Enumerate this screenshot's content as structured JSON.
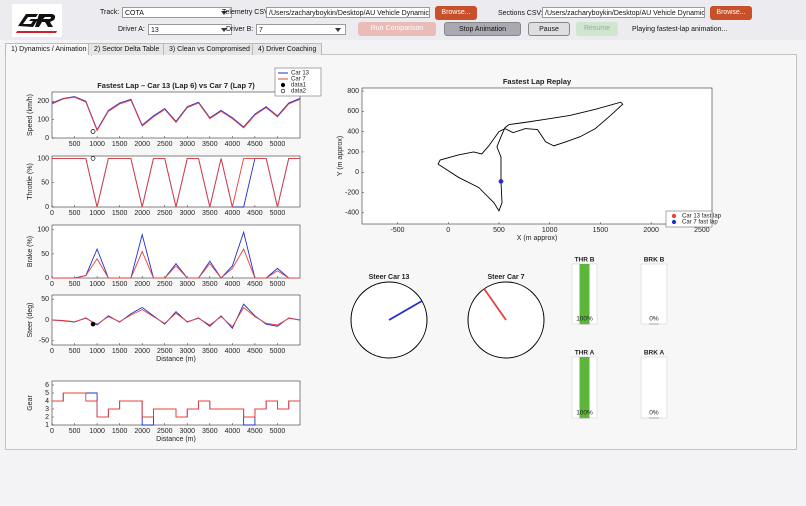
{
  "toolbar": {
    "track_label": "Track:",
    "track": "COTA",
    "telemetry_label": "Telemetry CSV:",
    "telemetry_path": "/Users/zacharyboykin/Desktop/AU Vehicle Dynamics &",
    "browse1": "Browse...",
    "sections_label": "Sections CSV:",
    "sections_path": "/Users/zacharyboykin/Desktop/AU Vehicle Dynamics &",
    "browse2": "Browse...",
    "driver_a_label": "Driver A:",
    "driver_a": "13",
    "driver_b_label": "Driver B:",
    "driver_b": "7",
    "run": "Run Comparison",
    "stop": "Stop Animation",
    "pause": "Pause",
    "resume": "Resume",
    "status": "Playing fastest-lap animation..."
  },
  "tabs": [
    "1) Dynamics / Animation",
    "2) Sector Delta Table",
    "3) Clean vs Compromised",
    "4) Driver Coaching"
  ],
  "chart_data": [
    {
      "type": "line",
      "title": "Fastest Lap – Car 13 (Lap 6) vs Car 7 (Lap 7)",
      "ylabel": "Speed (km/h)",
      "x": [
        0,
        250,
        500,
        750,
        1000,
        1250,
        1500,
        1750,
        2000,
        2250,
        2500,
        2750,
        3000,
        3250,
        3500,
        3750,
        4000,
        4250,
        4500,
        4750,
        5000,
        5250,
        5500
      ],
      "series": [
        {
          "name": "Car 13",
          "color": "#1f2fd0",
          "values": [
            190,
            215,
            225,
            200,
            45,
            150,
            190,
            210,
            70,
            120,
            160,
            90,
            170,
            195,
            110,
            150,
            110,
            60,
            130,
            170,
            120,
            190,
            215
          ]
        },
        {
          "name": "Car 7",
          "color": "#e8403a",
          "values": [
            185,
            212,
            222,
            195,
            40,
            145,
            185,
            205,
            65,
            115,
            155,
            85,
            165,
            190,
            105,
            145,
            105,
            55,
            125,
            165,
            115,
            185,
            210
          ]
        }
      ],
      "points": [
        {
          "name": "data1",
          "color": "#000000",
          "marker": "filled",
          "x": 910,
          "y": 35
        },
        {
          "name": "data2",
          "color": "#000000",
          "marker": "open",
          "x": 910,
          "y": 35
        }
      ],
      "legend": "northeast",
      "xlim": [
        0,
        5500
      ],
      "xticks": [
        500,
        1000,
        1500,
        2000,
        2500,
        3000,
        3500,
        4000,
        4500,
        5000
      ],
      "ylim": [
        0,
        250
      ],
      "yticks": [
        0,
        100,
        200
      ]
    },
    {
      "type": "line",
      "ylabel": "Throttle (%)",
      "x": [
        0,
        250,
        500,
        750,
        1000,
        1250,
        1500,
        1750,
        2000,
        2250,
        2500,
        2750,
        3000,
        3250,
        3500,
        3750,
        4000,
        4250,
        4500,
        4750,
        5000,
        5250,
        5500
      ],
      "series": [
        {
          "color": "#1f2fd0",
          "values": [
            100,
            100,
            100,
            100,
            0,
            100,
            100,
            100,
            0,
            100,
            100,
            0,
            100,
            100,
            0,
            100,
            0,
            0,
            100,
            100,
            0,
            100,
            100
          ]
        },
        {
          "color": "#e8403a",
          "values": [
            100,
            100,
            100,
            100,
            0,
            100,
            100,
            100,
            0,
            100,
            100,
            0,
            100,
            100,
            0,
            100,
            0,
            100,
            100,
            100,
            0,
            100,
            100
          ]
        }
      ],
      "points": [
        {
          "color": "#000000",
          "marker": "open",
          "x": 910,
          "y": 100
        }
      ],
      "xlim": [
        0,
        5500
      ],
      "xticks": [
        0,
        500,
        1000,
        1500,
        2000,
        2500,
        3000,
        3500,
        4000,
        4500,
        5000
      ],
      "ylim": [
        0,
        105
      ],
      "yticks": [
        0,
        50,
        100
      ]
    },
    {
      "type": "line",
      "ylabel": "Brake (%)",
      "x": [
        0,
        250,
        500,
        750,
        1000,
        1250,
        1500,
        1750,
        2000,
        2250,
        2500,
        2750,
        3000,
        3250,
        3500,
        3750,
        4000,
        4250,
        4500,
        4750,
        5000,
        5250,
        5500
      ],
      "series": [
        {
          "color": "#1f2fd0",
          "values": [
            0,
            0,
            0,
            5,
            60,
            0,
            0,
            0,
            90,
            0,
            0,
            30,
            0,
            0,
            35,
            0,
            25,
            95,
            0,
            0,
            20,
            0,
            0
          ]
        },
        {
          "color": "#e8403a",
          "values": [
            0,
            0,
            0,
            5,
            40,
            0,
            0,
            0,
            55,
            0,
            0,
            25,
            0,
            0,
            30,
            0,
            20,
            60,
            0,
            0,
            15,
            0,
            0
          ]
        }
      ],
      "xlim": [
        0,
        5500
      ],
      "xticks": [
        0,
        500,
        1000,
        1500,
        2000,
        2500,
        3000,
        3500,
        4000,
        4500,
        5000
      ],
      "ylim": [
        0,
        110
      ],
      "yticks": [
        0,
        50,
        100
      ]
    },
    {
      "type": "line",
      "ylabel": "Steer (deg)",
      "xlabel": "Distance (m)",
      "x": [
        0,
        250,
        500,
        750,
        1000,
        1250,
        1500,
        1750,
        2000,
        2250,
        2500,
        2750,
        3000,
        3250,
        3500,
        3750,
        4000,
        4250,
        4500,
        4750,
        5000,
        5250,
        5500
      ],
      "series": [
        {
          "color": "#1f2fd0",
          "values": [
            0,
            -2,
            -5,
            5,
            -12,
            10,
            -5,
            15,
            30,
            10,
            -10,
            20,
            -5,
            5,
            -15,
            10,
            -20,
            38,
            10,
            -10,
            -15,
            5,
            0
          ]
        },
        {
          "color": "#e8403a",
          "values": [
            0,
            -1,
            -4,
            4,
            -10,
            8,
            -4,
            12,
            25,
            8,
            -8,
            16,
            -4,
            4,
            -12,
            8,
            -16,
            30,
            8,
            -8,
            -12,
            4,
            0
          ]
        }
      ],
      "points": [
        {
          "color": "#000000",
          "marker": "filled",
          "x": 910,
          "y": -10
        }
      ],
      "xlim": [
        0,
        5500
      ],
      "xticks": [
        0,
        500,
        1000,
        1500,
        2000,
        2500,
        3000,
        3500,
        4000,
        4500,
        5000
      ],
      "ylim": [
        -60,
        60
      ],
      "yticks": [
        -50,
        0,
        50
      ]
    },
    {
      "type": "line",
      "step": true,
      "ylabel": "Gear",
      "xlabel": "Distance (m)",
      "x": [
        0,
        250,
        500,
        750,
        1000,
        1250,
        1500,
        1750,
        2000,
        2250,
        2500,
        2750,
        3000,
        3250,
        3500,
        3750,
        4000,
        4250,
        4500,
        4750,
        5000,
        5250,
        5500
      ],
      "series": [
        {
          "color": "#1f2fd0",
          "values": [
            4,
            5,
            5,
            5,
            2,
            3,
            4,
            4,
            1,
            3,
            3,
            2,
            3,
            4,
            3,
            3,
            3,
            1,
            3,
            4,
            3,
            4,
            4
          ]
        },
        {
          "color": "#e8403a",
          "values": [
            4,
            5,
            5,
            4,
            2,
            3,
            4,
            4,
            2,
            3,
            3,
            2,
            3,
            4,
            3,
            3,
            3,
            2,
            3,
            4,
            3,
            4,
            4
          ]
        }
      ],
      "xlim": [
        0,
        5500
      ],
      "xticks": [
        0,
        500,
        1000,
        1500,
        2000,
        2500,
        3000,
        3500,
        4000,
        4500,
        5000
      ],
      "ylim": [
        1,
        6.5
      ],
      "yticks": [
        1,
        2,
        3,
        4,
        5,
        6
      ]
    },
    {
      "type": "line",
      "title": "Fastest Lap Replay",
      "xlabel": "X (m approx)",
      "ylabel": "Y (m approx)",
      "series": [
        {
          "color": "#000000",
          "x": [
            520,
            530,
            500,
            450,
            300,
            100,
            -100,
            -80,
            100,
            250,
            330,
            400,
            500,
            560,
            640,
            760,
            880,
            960,
            1040,
            1160,
            1300,
            1450,
            1600,
            1720,
            1700,
            1450,
            1200,
            950,
            750,
            600,
            560,
            520,
            480,
            520,
            520,
            520
          ],
          "values": [
            -90,
            -300,
            -380,
            -300,
            -150,
            -50,
            80,
            120,
            170,
            200,
            180,
            260,
            400,
            430,
            390,
            430,
            420,
            300,
            260,
            300,
            350,
            430,
            560,
            670,
            690,
            620,
            560,
            520,
            490,
            470,
            440,
            350,
            250,
            150,
            50,
            -90
          ]
        }
      ],
      "points": [
        {
          "name": "Car 13 fast lap",
          "color": "#e8403a",
          "marker": "filled",
          "x": 520,
          "y": -90
        },
        {
          "name": "Car 7 fast lap",
          "color": "#1f2fd0",
          "marker": "filled",
          "x": 520,
          "y": -90
        }
      ],
      "legend": "southeast",
      "xlim": [
        -850,
        2600
      ],
      "xticks": [
        -500,
        0,
        500,
        1000,
        1500,
        2000,
        2500
      ],
      "ylim": [
        -510,
        830
      ],
      "yticks": [
        -400,
        -200,
        0,
        200,
        400,
        600,
        800
      ]
    },
    {
      "type": "gauge",
      "title": "Steer Car 13",
      "value": 60,
      "color": "#1f2fd0"
    },
    {
      "type": "gauge",
      "title": "Steer Car 7",
      "value": -35,
      "color": "#e8403a"
    },
    {
      "type": "level",
      "title": "THR B",
      "values": [
        100
      ],
      "value_labels": [
        "100%"
      ],
      "ylim": [
        0,
        100
      ],
      "color": "#5cb63a"
    },
    {
      "type": "level",
      "title": "BRK B",
      "values": [
        0
      ],
      "value_labels": [
        "0%"
      ],
      "ylim": [
        0,
        100
      ],
      "color": "#5cb63a"
    },
    {
      "type": "level",
      "title": "THR A",
      "values": [
        100
      ],
      "value_labels": [
        "100%"
      ],
      "ylim": [
        0,
        100
      ],
      "color": "#5cb63a"
    },
    {
      "type": "level",
      "title": "BRK A",
      "values": [
        0
      ],
      "value_labels": [
        "0%"
      ],
      "ylim": [
        0,
        100
      ],
      "color": "#5cb63a"
    }
  ]
}
